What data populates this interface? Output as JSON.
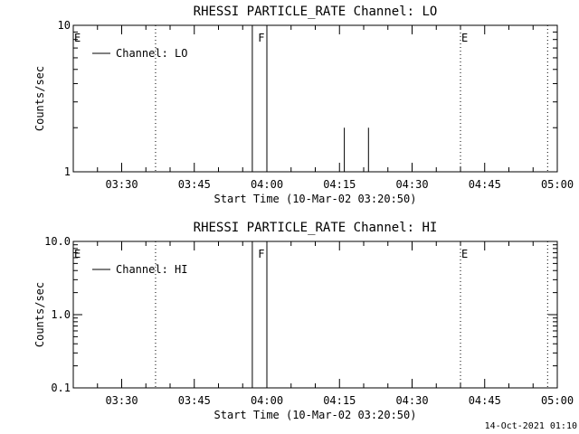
{
  "footer": {
    "date_stamp": "14-Oct-2021 01:10"
  },
  "chart_data": [
    {
      "type": "line",
      "title": "RHESSI PARTICLE_RATE Channel: LO",
      "xlabel": "Start Time (10-Mar-02 03:20:50)",
      "ylabel": "Counts/sec",
      "y_scale": "log",
      "ylim": [
        1,
        10
      ],
      "y_ticks": [
        1,
        10
      ],
      "y_tick_labels": [
        "1",
        "10"
      ],
      "xlim": [
        "03:20",
        "05:00"
      ],
      "x_ticks": [
        "03:30",
        "03:45",
        "04:00",
        "04:15",
        "04:30",
        "04:45",
        "05:00"
      ],
      "legend": {
        "position": "top-left",
        "entries": [
          "Channel: LO"
        ]
      },
      "grid": false,
      "series": [
        {
          "name": "Channel: LO",
          "points": [
            [
              "03:20",
              1
            ],
            [
              "03:57",
              1
            ],
            [
              "03:57",
              10
            ],
            [
              "04:00",
              10
            ],
            [
              "04:00",
              1
            ],
            [
              "04:16",
              1
            ],
            [
              "04:16",
              2
            ],
            [
              "04:16",
              1
            ],
            [
              "04:21",
              1
            ],
            [
              "04:21",
              2
            ],
            [
              "04:21",
              1
            ],
            [
              "05:00",
              1
            ]
          ]
        }
      ],
      "vlines": [
        {
          "time": "03:37",
          "style": "dotted"
        },
        {
          "time": "04:40",
          "style": "dotted"
        },
        {
          "time": "04:58",
          "style": "dotted"
        }
      ],
      "markers": [
        {
          "label": "E",
          "time": "03:20"
        },
        {
          "label": "F",
          "time": "03:58"
        },
        {
          "label": "E",
          "time": "04:40"
        }
      ]
    },
    {
      "type": "line",
      "title": "RHESSI PARTICLE_RATE Channel: HI",
      "xlabel": "Start Time (10-Mar-02 03:20:50)",
      "ylabel": "Counts/sec",
      "y_scale": "log",
      "ylim": [
        0.1,
        10
      ],
      "y_ticks": [
        0.1,
        1,
        10
      ],
      "y_tick_labels": [
        "0.1",
        "1.0",
        "10.0"
      ],
      "xlim": [
        "03:20",
        "05:00"
      ],
      "x_ticks": [
        "03:30",
        "03:45",
        "04:00",
        "04:15",
        "04:30",
        "04:45",
        "05:00"
      ],
      "legend": {
        "position": "top-left",
        "entries": [
          "Channel: HI"
        ]
      },
      "grid": false,
      "series": [
        {
          "name": "Channel: HI",
          "points": [
            [
              "03:57",
              0.1
            ],
            [
              "03:57",
              10
            ],
            [
              "04:00",
              10
            ],
            [
              "04:00",
              0.1
            ]
          ]
        }
      ],
      "vlines": [
        {
          "time": "03:37",
          "style": "dotted"
        },
        {
          "time": "04:40",
          "style": "dotted"
        },
        {
          "time": "04:58",
          "style": "dotted"
        }
      ],
      "markers": [
        {
          "label": "E",
          "time": "03:20"
        },
        {
          "label": "F",
          "time": "03:58"
        },
        {
          "label": "E",
          "time": "04:40"
        }
      ]
    }
  ]
}
